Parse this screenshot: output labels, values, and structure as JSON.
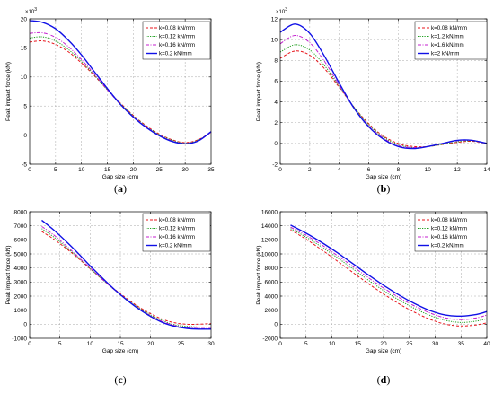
{
  "series_styles": [
    {
      "color": "#e8141b",
      "dash": "3,2",
      "width": 1.0
    },
    {
      "color": "#20a020",
      "dash": "1.2,1.3",
      "width": 1.0
    },
    {
      "color": "#c41fcf",
      "dash": "4,1.5,1,1.5",
      "width": 1.0
    },
    {
      "color": "#1010e6",
      "dash": "",
      "width": 1.4
    }
  ],
  "chart_data": [
    {
      "type": "line",
      "caption": "(a)",
      "xlabel": "Gap size (cm)",
      "ylabel": "Peak impact force (kN)",
      "exponent": "×10",
      "exponent_power": "3",
      "xlim": [
        0,
        35
      ],
      "ylim": [
        -5,
        20
      ],
      "xticks": [
        0,
        5,
        10,
        15,
        20,
        25,
        30,
        35
      ],
      "yticks": [
        -5,
        0,
        5,
        10,
        15,
        20
      ],
      "grid": true,
      "legend_position": "top-right",
      "x": [
        0,
        2.5,
        5,
        7.5,
        10,
        12.5,
        15,
        17.5,
        20,
        22.5,
        25,
        27.5,
        30,
        32.5,
        35
      ],
      "series": [
        {
          "name": "k=0.08 kN/mm",
          "values": [
            16.0,
            16.2,
            15.6,
            14.3,
            12.4,
            10.2,
            7.8,
            5.5,
            3.4,
            1.6,
            0.2,
            -0.8,
            -1.3,
            -0.8,
            0.5
          ]
        },
        {
          "name": "k=0.12 kN/mm",
          "values": [
            16.7,
            16.9,
            16.2,
            14.7,
            12.7,
            10.3,
            7.8,
            5.4,
            3.3,
            1.5,
            0.1,
            -0.9,
            -1.4,
            -0.9,
            0.5
          ]
        },
        {
          "name": "k=0.16 kN/mm",
          "values": [
            17.5,
            17.6,
            16.8,
            15.2,
            13.0,
            10.5,
            7.8,
            5.3,
            3.2,
            1.4,
            0.0,
            -1.0,
            -1.5,
            -1.0,
            0.5
          ]
        },
        {
          "name": "k=0.2 kN/mm",
          "values": [
            19.7,
            19.4,
            18.3,
            16.3,
            13.8,
            10.9,
            8.0,
            5.3,
            3.1,
            1.3,
            -0.1,
            -1.1,
            -1.5,
            -1.0,
            0.6
          ]
        }
      ]
    },
    {
      "type": "line",
      "caption": "(b)",
      "xlabel": "Gap size (cm)",
      "ylabel": "Peak impact force (kN)",
      "exponent": "×10",
      "exponent_power": "3",
      "xlim": [
        0,
        14
      ],
      "ylim": [
        -2,
        12
      ],
      "xticks": [
        0,
        2,
        4,
        6,
        8,
        10,
        12,
        14
      ],
      "yticks": [
        -2,
        0,
        2,
        4,
        6,
        8,
        10,
        12
      ],
      "grid": true,
      "legend_position": "top-right",
      "x": [
        0,
        1,
        2,
        3,
        4,
        5,
        6,
        7,
        8,
        9,
        10,
        11,
        12,
        13,
        14
      ],
      "series": [
        {
          "name": "k=0.08 kN/mm",
          "values": [
            8.2,
            8.9,
            8.5,
            7.2,
            5.4,
            3.5,
            1.9,
            0.7,
            0.0,
            -0.3,
            -0.3,
            -0.1,
            0.1,
            0.2,
            0.0
          ]
        },
        {
          "name": "k=1.2 kN/mm",
          "values": [
            8.8,
            9.5,
            9.0,
            7.5,
            5.5,
            3.5,
            1.8,
            0.6,
            -0.1,
            -0.4,
            -0.3,
            -0.1,
            0.15,
            0.25,
            0.0
          ]
        },
        {
          "name": "k=1.6 kN/mm",
          "values": [
            9.6,
            10.4,
            9.7,
            7.9,
            5.6,
            3.4,
            1.7,
            0.5,
            -0.2,
            -0.4,
            -0.3,
            0.0,
            0.25,
            0.3,
            0.0
          ]
        },
        {
          "name": "k=2 kN/mm",
          "values": [
            10.7,
            11.5,
            10.6,
            8.4,
            5.8,
            3.4,
            1.6,
            0.4,
            -0.3,
            -0.5,
            -0.3,
            0.0,
            0.3,
            0.3,
            0.0
          ]
        }
      ]
    },
    {
      "type": "line",
      "caption": "(c)",
      "xlabel": "Gap size (cm)",
      "ylabel": "Peak impact force (kN)",
      "exponent": "",
      "exponent_power": "",
      "xlim": [
        0,
        30
      ],
      "ylim": [
        -1000,
        8000
      ],
      "xticks": [
        0,
        5,
        10,
        15,
        20,
        25,
        30
      ],
      "yticks": [
        -1000,
        0,
        1000,
        2000,
        3000,
        4000,
        5000,
        6000,
        7000,
        8000
      ],
      "grid": true,
      "legend_position": "top-right",
      "x": [
        2,
        4,
        6,
        8,
        10,
        12,
        14,
        16,
        18,
        20,
        22,
        24,
        26,
        28,
        30
      ],
      "series": [
        {
          "name": "k=0.08 kN/mm",
          "values": [
            6600,
            6050,
            5400,
            4700,
            3950,
            3200,
            2500,
            1850,
            1250,
            750,
            350,
            100,
            0,
            0,
            50
          ]
        },
        {
          "name": "k=0.12 kN/mm",
          "values": [
            6800,
            6200,
            5500,
            4750,
            3950,
            3200,
            2450,
            1780,
            1180,
            650,
            250,
            -50,
            -150,
            -200,
            -200
          ]
        },
        {
          "name": "k=0.16 kN/mm",
          "values": [
            6950,
            6350,
            5600,
            4800,
            4000,
            3200,
            2450,
            1750,
            1130,
            600,
            180,
            -100,
            -250,
            -300,
            -300
          ]
        },
        {
          "name": "k=0.2 kN/mm",
          "values": [
            7400,
            6700,
            5900,
            5050,
            4150,
            3300,
            2480,
            1750,
            1100,
            550,
            120,
            -150,
            -300,
            -350,
            -350
          ]
        }
      ]
    },
    {
      "type": "line",
      "caption": "(d)",
      "xlabel": "Gap size (cm)",
      "ylabel": "Peak impact force (kN)",
      "exponent": "",
      "exponent_power": "",
      "xlim": [
        0,
        40
      ],
      "ylim": [
        -2000,
        16000
      ],
      "xticks": [
        0,
        5,
        10,
        15,
        20,
        25,
        30,
        35,
        40
      ],
      "yticks": [
        -2000,
        0,
        2000,
        4000,
        6000,
        8000,
        10000,
        12000,
        14000,
        16000
      ],
      "grid": true,
      "legend_position": "top-right",
      "x": [
        2,
        5,
        8,
        11,
        14,
        17,
        20,
        23,
        26,
        29,
        32,
        35,
        38,
        40
      ],
      "series": [
        {
          "name": "k=0.08 kN/mm",
          "values": [
            13400,
            12100,
            10600,
            9000,
            7400,
            5800,
            4300,
            2900,
            1700,
            700,
            0,
            -250,
            -100,
            200
          ]
        },
        {
          "name": "k=0.12 kN/mm",
          "values": [
            13600,
            12400,
            11000,
            9500,
            7900,
            6300,
            4800,
            3450,
            2250,
            1250,
            550,
            250,
            450,
            800
          ]
        },
        {
          "name": "k=0.16 kN/mm",
          "values": [
            13800,
            12650,
            11300,
            9800,
            8250,
            6650,
            5150,
            3800,
            2600,
            1600,
            900,
            650,
            900,
            1300
          ]
        },
        {
          "name": "k=0.2 kN/mm",
          "values": [
            14100,
            12950,
            11650,
            10200,
            8650,
            7050,
            5550,
            4150,
            2950,
            1950,
            1300,
            1150,
            1400,
            1800
          ]
        }
      ]
    }
  ]
}
